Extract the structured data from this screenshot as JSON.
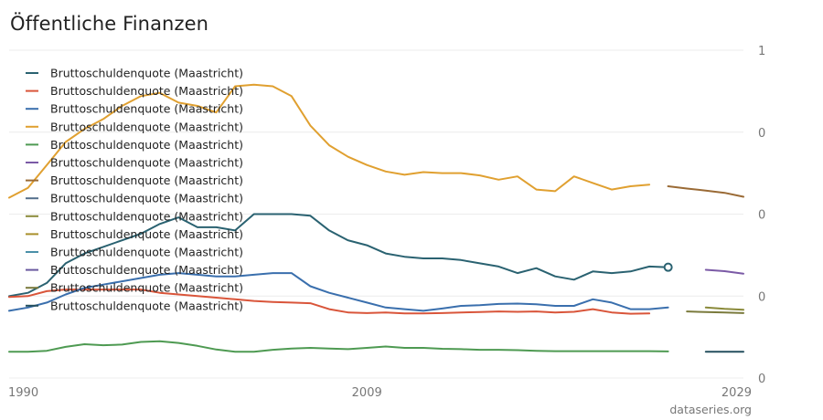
{
  "title": "Öffentliche Finanzen",
  "source": "dataseries.org",
  "chart_data": {
    "type": "line",
    "title": "Öffentliche Finanzen",
    "xlabel": "",
    "ylabel": "",
    "xlim": [
      1990,
      2029
    ],
    "ylim": [
      0,
      1
    ],
    "x_ticks": [
      {
        "label": "1990",
        "value": 1990
      },
      {
        "label": "2009",
        "value": 2009
      },
      {
        "label": "2029",
        "value": 2029
      }
    ],
    "y_ticks": [
      {
        "label": "1",
        "value": 1
      },
      {
        "label": "0",
        "value": 0.75
      },
      {
        "label": "0",
        "value": 0.5
      },
      {
        "label": "0",
        "value": 0.25
      },
      {
        "label": "0",
        "value": 0
      }
    ],
    "grid": true,
    "legend_position": "top-left",
    "series": [
      {
        "name": "Bruttoschuldenquote (Maastricht)",
        "color": "#2a6271",
        "x": [
          1990,
          1991,
          1992,
          1993,
          1994,
          1995,
          1996,
          1997,
          1998,
          1999,
          2000,
          2001,
          2002,
          2003,
          2004,
          2005,
          2006,
          2007,
          2008,
          2009,
          2010,
          2011,
          2012,
          2013,
          2014,
          2015,
          2016,
          2017,
          2018,
          2019,
          2020,
          2021,
          2022,
          2023,
          2024,
          2025
        ],
        "values": [
          0.25,
          0.26,
          0.29,
          0.35,
          0.38,
          0.4,
          0.42,
          0.44,
          0.47,
          0.49,
          0.46,
          0.46,
          0.45,
          0.5,
          0.5,
          0.5,
          0.495,
          0.45,
          0.42,
          0.405,
          0.38,
          0.37,
          0.365,
          0.365,
          0.36,
          0.35,
          0.34,
          0.32,
          0.335,
          0.31,
          0.3,
          0.325,
          0.32,
          0.325,
          0.34,
          0.338
        ],
        "marker_last": true
      },
      {
        "name": "Bruttoschuldenquote (Maastricht)",
        "color": "#d9553a",
        "x": [
          1990,
          1991,
          1992,
          1993,
          1994,
          1995,
          1996,
          1997,
          1998,
          1999,
          2000,
          2001,
          2002,
          2003,
          2004,
          2005,
          2006,
          2007,
          2008,
          2009,
          2010,
          2011,
          2012,
          2013,
          2014,
          2015,
          2016,
          2017,
          2018,
          2019,
          2020,
          2021,
          2022,
          2023,
          2024
        ],
        "values": [
          0.247,
          0.25,
          0.265,
          0.27,
          0.27,
          0.27,
          0.27,
          0.27,
          0.26,
          0.255,
          0.25,
          0.245,
          0.24,
          0.235,
          0.232,
          0.23,
          0.228,
          0.21,
          0.2,
          0.198,
          0.2,
          0.197,
          0.197,
          0.198,
          0.2,
          0.201,
          0.203,
          0.202,
          0.203,
          0.2,
          0.202,
          0.21,
          0.2,
          0.196,
          0.197
        ]
      },
      {
        "name": "Bruttoschuldenquote (Maastricht)",
        "color": "#3a6fad",
        "x": [
          1990,
          1991,
          1992,
          1993,
          1994,
          1995,
          1996,
          1997,
          1998,
          1999,
          2000,
          2001,
          2002,
          2003,
          2004,
          2005,
          2006,
          2007,
          2008,
          2009,
          2010,
          2011,
          2012,
          2013,
          2014,
          2015,
          2016,
          2017,
          2018,
          2019,
          2020,
          2021,
          2022,
          2023,
          2024,
          2025
        ],
        "values": [
          0.205,
          0.215,
          0.23,
          0.255,
          0.275,
          0.285,
          0.295,
          0.305,
          0.315,
          0.32,
          0.315,
          0.31,
          0.31,
          0.315,
          0.32,
          0.32,
          0.28,
          0.26,
          0.245,
          0.23,
          0.215,
          0.21,
          0.205,
          0.212,
          0.22,
          0.222,
          0.226,
          0.227,
          0.225,
          0.22,
          0.22,
          0.24,
          0.23,
          0.21,
          0.21,
          0.215
        ]
      },
      {
        "name": "Bruttoschuldenquote (Maastricht)",
        "color": "#e0a030",
        "x": [
          1990,
          1991,
          1992,
          1993,
          1994,
          1995,
          1996,
          1997,
          1998,
          1999,
          2000,
          2001,
          2002,
          2003,
          2004,
          2005,
          2006,
          2007,
          2008,
          2009,
          2010,
          2011,
          2012,
          2013,
          2014,
          2015,
          2016,
          2017,
          2018,
          2019,
          2020,
          2021,
          2022,
          2023,
          2024
        ],
        "values": [
          0.55,
          0.58,
          0.65,
          0.72,
          0.76,
          0.79,
          0.83,
          0.86,
          0.87,
          0.84,
          0.83,
          0.81,
          0.89,
          0.895,
          0.89,
          0.86,
          0.77,
          0.71,
          0.675,
          0.65,
          0.63,
          0.62,
          0.628,
          0.625,
          0.625,
          0.618,
          0.605,
          0.615,
          0.575,
          0.57,
          0.615,
          0.595,
          0.575,
          0.585,
          0.59
        ]
      },
      {
        "name": "Bruttoschuldenquote (Maastricht)",
        "color": "#4e9a52",
        "x": [
          1990,
          1991,
          1992,
          1993,
          1994,
          1995,
          1996,
          1997,
          1998,
          1999,
          2000,
          2001,
          2002,
          2003,
          2004,
          2005,
          2006,
          2007,
          2008,
          2009,
          2010,
          2011,
          2012,
          2013,
          2014,
          2015,
          2016,
          2017,
          2018,
          2019,
          2020,
          2021,
          2022,
          2023,
          2024,
          2025
        ],
        "values": [
          0.08,
          0.08,
          0.083,
          0.095,
          0.103,
          0.1,
          0.102,
          0.11,
          0.112,
          0.107,
          0.098,
          0.087,
          0.08,
          0.08,
          0.086,
          0.09,
          0.092,
          0.09,
          0.088,
          0.092,
          0.096,
          0.092,
          0.092,
          0.089,
          0.088,
          0.086,
          0.086,
          0.085,
          0.083,
          0.082,
          0.082,
          0.082,
          0.082,
          0.082,
          0.082,
          0.081
        ]
      },
      {
        "name": "Bruttoschuldenquote (Maastricht)",
        "color": "#7b5aa6",
        "x": [
          2027,
          2028,
          2029
        ],
        "values": [
          0.33,
          0.326,
          0.318
        ]
      },
      {
        "name": "Bruttoschuldenquote (Maastricht)",
        "color": "#9a6a35",
        "x": [
          2025,
          2026,
          2027,
          2028,
          2029
        ],
        "values": [
          0.585,
          0.578,
          0.572,
          0.565,
          0.553
        ]
      },
      {
        "name": "Bruttoschuldenquote (Maastricht)",
        "color": "#546f8c",
        "x": [],
        "values": []
      },
      {
        "name": "Bruttoschuldenquote (Maastricht)",
        "color": "#8a8a3a",
        "x": [
          2027,
          2028,
          2029
        ],
        "values": [
          0.215,
          0.211,
          0.208
        ]
      },
      {
        "name": "Bruttoschuldenquote (Maastricht)",
        "color": "#a8902a",
        "x": [],
        "values": []
      },
      {
        "name": "Bruttoschuldenquote (Maastricht)",
        "color": "#4a90a8",
        "x": [],
        "values": []
      },
      {
        "name": "Bruttoschuldenquote (Maastricht)",
        "color": "#6a5aa0",
        "x": [],
        "values": []
      },
      {
        "name": "Bruttoschuldenquote (Maastricht)",
        "color": "#7a7a3c",
        "x": [
          2026,
          2027,
          2028,
          2029
        ],
        "values": [
          0.203,
          0.201,
          0.2,
          0.198
        ]
      },
      {
        "name": "Bruttoschuldenquote (Maastricht)",
        "color": "#244f5e",
        "x": [
          2027,
          2028,
          2029
        ],
        "values": [
          0.08,
          0.08,
          0.08
        ]
      }
    ]
  }
}
